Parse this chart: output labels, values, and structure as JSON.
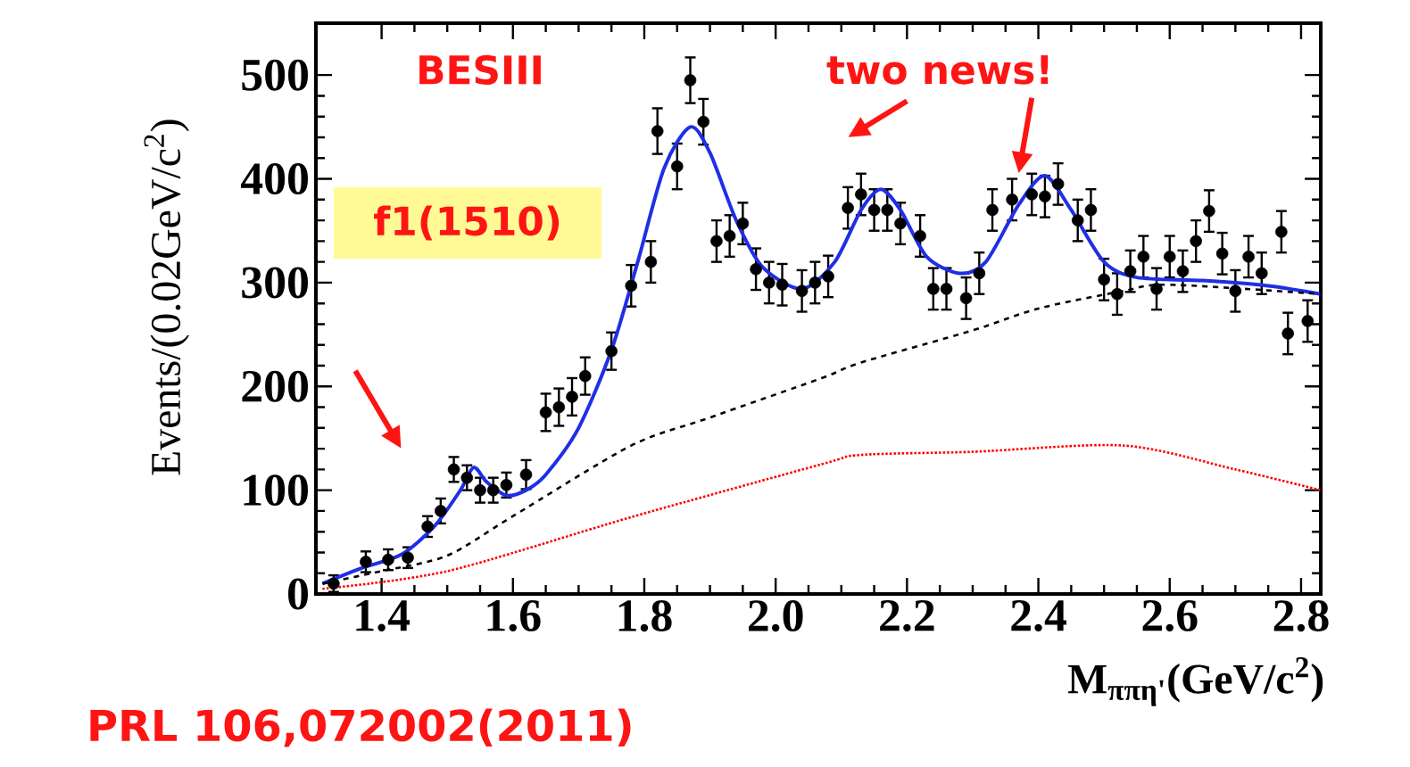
{
  "chart_data": {
    "type": "scatter",
    "xlabel": "M$_{ππη'}$(GeV/c$^{2}$)",
    "ylabel": "Events/(0.02GeV/c$^{2}$)",
    "xlim": [
      1.3,
      2.83
    ],
    "ylim": [
      0,
      550
    ],
    "xticks": [
      1.4,
      1.6,
      1.8,
      {
        "value": 2.0,
        "label": "2.0"
      },
      2.2,
      2.4,
      2.6,
      2.8
    ],
    "yticks": [
      0,
      100,
      200,
      300,
      400,
      500
    ],
    "grid": false,
    "annotations": [
      "BESIII",
      "two news!",
      "f1(1510)",
      "PRL 106,072002(2011)"
    ],
    "series": [
      {
        "color": "#000000",
        "x": [
          1.327,
          1.376,
          1.41,
          1.44,
          1.47,
          1.49,
          1.51,
          1.53,
          1.55,
          1.57,
          1.59,
          1.62,
          1.65,
          1.67,
          1.69,
          1.71,
          1.75,
          1.78,
          1.81,
          1.82,
          1.85,
          1.87,
          1.89,
          1.91,
          1.93,
          1.95,
          1.97,
          1.99,
          2.01,
          2.04,
          2.06,
          2.08,
          2.11,
          2.13,
          2.15,
          2.17,
          2.19,
          2.22,
          2.24,
          2.26,
          2.29,
          2.31,
          2.33,
          2.36,
          2.39,
          2.41,
          2.43,
          2.46,
          2.48,
          2.5,
          2.52,
          2.54,
          2.56,
          2.58,
          2.6,
          2.62,
          2.64,
          2.66,
          2.68,
          2.7,
          2.72,
          2.74,
          2.77,
          2.78,
          2.81
        ],
        "values": [
          10,
          31,
          33,
          35,
          65,
          80,
          120,
          112,
          100,
          100,
          105,
          115,
          175,
          180,
          190,
          210,
          234,
          297,
          320,
          446,
          412,
          495,
          455,
          340,
          345,
          357,
          313,
          300,
          298,
          292,
          300,
          306,
          372,
          385,
          370,
          370,
          357,
          345,
          294,
          294,
          285,
          309,
          370,
          380,
          385,
          383,
          395,
          360,
          370,
          303,
          289,
          311,
          325,
          294,
          325,
          311,
          340,
          369,
          328,
          292,
          325,
          309,
          349,
          251,
          263
        ],
        "errors": [
          8,
          10,
          10,
          10,
          10,
          12,
          12,
          12,
          12,
          12,
          12,
          14,
          18,
          18,
          18,
          18,
          18,
          20,
          20,
          22,
          22,
          22,
          22,
          20,
          20,
          20,
          20,
          20,
          20,
          20,
          20,
          20,
          20,
          20,
          20,
          20,
          20,
          20,
          20,
          20,
          20,
          20,
          20,
          20,
          20,
          20,
          20,
          20,
          20,
          20,
          20,
          20,
          20,
          20,
          20,
          20,
          20,
          20,
          20,
          20,
          20,
          20,
          20,
          20,
          20
        ]
      },
      {
        "type": "line",
        "marker": "none",
        "line_style": "solid",
        "color": "#1f2fe6",
        "x": [
          1.31,
          1.37,
          1.43,
          1.48,
          1.52,
          1.54,
          1.56,
          1.59,
          1.62,
          1.65,
          1.7,
          1.75,
          1.79,
          1.83,
          1.87,
          1.9,
          1.94,
          1.98,
          2.04,
          2.09,
          2.13,
          2.16,
          2.19,
          2.23,
          2.28,
          2.32,
          2.37,
          2.41,
          2.45,
          2.5,
          2.55,
          2.65,
          2.75,
          2.83
        ],
        "values": [
          10,
          25,
          38,
          65,
          100,
          122,
          108,
          95,
          100,
          115,
          160,
          235,
          320,
          410,
          450,
          425,
          360,
          315,
          294,
          320,
          370,
          390,
          370,
          325,
          309,
          320,
          375,
          403,
          370,
          320,
          305,
          302,
          297,
          289
        ]
      },
      {
        "type": "line",
        "marker": "none",
        "line_style": "dashed",
        "color": "#000000",
        "x": [
          1.31,
          1.4,
          1.5,
          1.6,
          1.78,
          1.9,
          2.07,
          2.13,
          2.3,
          2.4,
          2.53,
          2.6,
          2.83
        ],
        "values": [
          10,
          22,
          37,
          75,
          143,
          170,
          208,
          223,
          254,
          275,
          292,
          298,
          289
        ]
      },
      {
        "type": "line",
        "marker": "none",
        "line_style": "dotted",
        "color": "#ff0000",
        "x": [
          1.31,
          1.5,
          1.78,
          2.07,
          2.13,
          2.3,
          2.53,
          2.7,
          2.83
        ],
        "values": [
          5,
          22,
          74,
          125,
          134,
          137,
          143,
          120,
          100
        ]
      }
    ]
  }
}
